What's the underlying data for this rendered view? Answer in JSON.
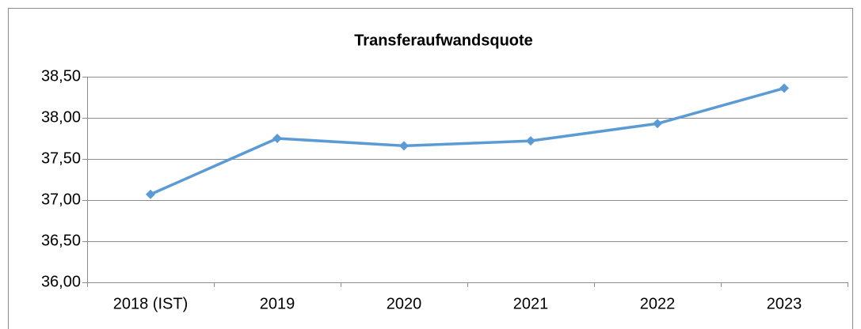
{
  "chart_data": {
    "type": "line",
    "title": "Transferaufwandsquote",
    "categories": [
      "2018 (IST)",
      "2019",
      "2020",
      "2021",
      "2022",
      "2023"
    ],
    "series": [
      {
        "name": "Transferaufwandsquote",
        "color": "#5b9bd5",
        "values": [
          37.07,
          37.75,
          37.66,
          37.72,
          37.93,
          38.36
        ]
      }
    ],
    "ylim": [
      36,
      38.5
    ],
    "yticks": [
      {
        "value": 36,
        "label": "36,00"
      },
      {
        "value": 36.5,
        "label": "36,50"
      },
      {
        "value": 37,
        "label": "37,00"
      },
      {
        "value": 37.5,
        "label": "37,50"
      },
      {
        "value": 38,
        "label": "38,00"
      },
      {
        "value": 38.5,
        "label": "38,50"
      }
    ],
    "grid": true
  }
}
